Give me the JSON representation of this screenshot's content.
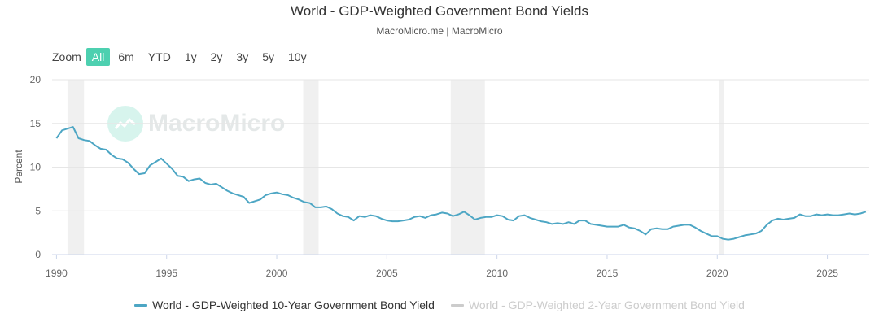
{
  "chart_data": {
    "type": "line",
    "title": "World - GDP-Weighted Government Bond Yields",
    "subtitle": "MacroMicro.me | MacroMicro",
    "ylabel": "Percent",
    "xlabel": "",
    "xlim": [
      1989.8,
      2026.9
    ],
    "ylim": [
      0,
      20
    ],
    "yticks": [
      0,
      5,
      10,
      15,
      20
    ],
    "xticks": [
      1990,
      1995,
      2000,
      2005,
      2010,
      2015,
      2020,
      2025
    ],
    "grid": true,
    "legend_position": "bottom-center",
    "recession_bands": [
      [
        1990.5,
        1991.25
      ],
      [
        2001.2,
        2001.9
      ],
      [
        2007.9,
        2009.45
      ],
      [
        2020.1,
        2020.3
      ]
    ],
    "series": [
      {
        "name": "World - GDP-Weighted 10-Year Government Bond Yield",
        "color": "#4da6c4",
        "visible": true,
        "x": [
          1990.0,
          1990.25,
          1990.5,
          1990.75,
          1991.0,
          1991.25,
          1991.5,
          1991.75,
          1992.0,
          1992.25,
          1992.5,
          1992.75,
          1993.0,
          1993.25,
          1993.5,
          1993.75,
          1994.0,
          1994.25,
          1994.5,
          1994.75,
          1995.0,
          1995.25,
          1995.5,
          1995.75,
          1996.0,
          1996.25,
          1996.5,
          1996.75,
          1997.0,
          1997.25,
          1997.5,
          1997.75,
          1998.0,
          1998.25,
          1998.5,
          1998.75,
          1999.0,
          1999.25,
          1999.5,
          1999.75,
          2000.0,
          2000.25,
          2000.5,
          2000.75,
          2001.0,
          2001.25,
          2001.5,
          2001.75,
          2002.0,
          2002.25,
          2002.5,
          2002.75,
          2003.0,
          2003.25,
          2003.5,
          2003.75,
          2004.0,
          2004.25,
          2004.5,
          2004.75,
          2005.0,
          2005.25,
          2005.5,
          2005.75,
          2006.0,
          2006.25,
          2006.5,
          2006.75,
          2007.0,
          2007.25,
          2007.5,
          2007.75,
          2008.0,
          2008.25,
          2008.5,
          2008.75,
          2009.0,
          2009.25,
          2009.5,
          2009.75,
          2010.0,
          2010.25,
          2010.5,
          2010.75,
          2011.0,
          2011.25,
          2011.5,
          2011.75,
          2012.0,
          2012.25,
          2012.5,
          2012.75,
          2013.0,
          2013.25,
          2013.5,
          2013.75,
          2014.0,
          2014.25,
          2014.5,
          2014.75,
          2015.0,
          2015.25,
          2015.5,
          2015.75,
          2016.0,
          2016.25,
          2016.5,
          2016.75,
          2017.0,
          2017.25,
          2017.5,
          2017.75,
          2018.0,
          2018.25,
          2018.5,
          2018.75,
          2019.0,
          2019.25,
          2019.5,
          2019.75,
          2020.0,
          2020.25,
          2020.5,
          2020.75,
          2021.0,
          2021.25,
          2021.5,
          2021.75,
          2022.0,
          2022.25,
          2022.5,
          2022.75,
          2023.0,
          2023.25,
          2023.5,
          2023.75,
          2024.0,
          2024.25,
          2024.5,
          2024.75,
          2025.0,
          2025.25,
          2025.5,
          2025.75,
          2026.0,
          2026.25,
          2026.5,
          2026.75
        ],
        "values": [
          13.3,
          14.2,
          14.4,
          14.6,
          13.3,
          13.1,
          13.0,
          12.5,
          12.1,
          12.0,
          11.4,
          11.0,
          10.9,
          10.5,
          9.8,
          9.2,
          9.3,
          10.2,
          10.6,
          11.0,
          10.4,
          9.8,
          9.0,
          8.9,
          8.4,
          8.6,
          8.7,
          8.2,
          8.0,
          8.1,
          7.7,
          7.3,
          7.0,
          6.8,
          6.6,
          5.9,
          6.1,
          6.3,
          6.8,
          7.0,
          7.1,
          6.9,
          6.8,
          6.5,
          6.3,
          6.0,
          5.9,
          5.4,
          5.4,
          5.5,
          5.2,
          4.7,
          4.4,
          4.3,
          3.9,
          4.4,
          4.3,
          4.5,
          4.4,
          4.1,
          3.9,
          3.8,
          3.8,
          3.9,
          4.0,
          4.3,
          4.4,
          4.2,
          4.5,
          4.6,
          4.8,
          4.7,
          4.4,
          4.6,
          4.9,
          4.5,
          4.0,
          4.2,
          4.3,
          4.3,
          4.5,
          4.4,
          4.0,
          3.9,
          4.4,
          4.5,
          4.2,
          4.0,
          3.8,
          3.7,
          3.5,
          3.6,
          3.5,
          3.7,
          3.5,
          3.9,
          3.9,
          3.5,
          3.4,
          3.3,
          3.2,
          3.2,
          3.2,
          3.4,
          3.1,
          3.0,
          2.7,
          2.3,
          2.9,
          3.0,
          2.9,
          2.9,
          3.2,
          3.3,
          3.4,
          3.4,
          3.1,
          2.7,
          2.4,
          2.1,
          2.1,
          1.8,
          1.7,
          1.8,
          2.0,
          2.2,
          2.3,
          2.4,
          2.7,
          3.4,
          3.9,
          4.1,
          4.0,
          4.1,
          4.2,
          4.6,
          4.4,
          4.4,
          4.6,
          4.5,
          4.6,
          4.5,
          4.5,
          4.6,
          4.7,
          4.6,
          4.7,
          4.9
        ]
      },
      {
        "name": "World - GDP-Weighted 2-Year Government Bond Yield",
        "color": "#cccccc",
        "visible": false,
        "x": [],
        "values": []
      }
    ]
  },
  "zoom": {
    "label": "Zoom",
    "buttons": [
      "All",
      "6m",
      "YTD",
      "1y",
      "2y",
      "3y",
      "5y",
      "10y"
    ],
    "active": "All"
  },
  "watermark": {
    "text": "MacroMicro",
    "color": "#4dd0b0"
  }
}
